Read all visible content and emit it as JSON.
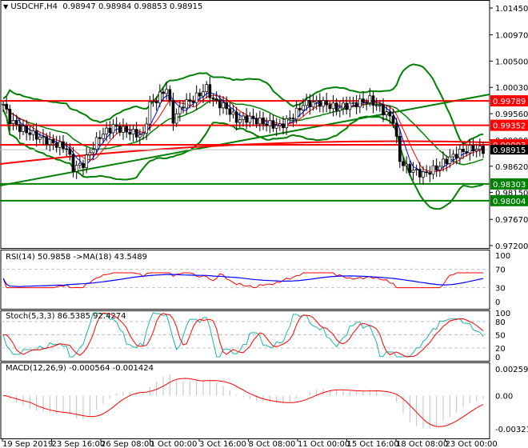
{
  "header": {
    "symbol": "USDCHF,H4",
    "open": "0.98947",
    "high": "0.98984",
    "low": "0.98853",
    "close": "0.98915"
  },
  "price_axis": {
    "ticks": [
      "1.01450",
      "1.00970",
      "1.00500",
      "1.00030",
      "0.99560",
      "0.99090",
      "0.98620",
      "0.98150",
      "0.97670",
      "0.97200"
    ],
    "min": 0.972,
    "max": 1.0145
  },
  "levels": [
    {
      "value": "0.99789",
      "color": "#ff0000"
    },
    {
      "value": "0.99352",
      "color": "#ff0000"
    },
    {
      "value": "0.99003",
      "color": "#ff0000"
    },
    {
      "value": "0.98303",
      "color": "#008000"
    },
    {
      "value": "0.98004",
      "color": "#008000"
    }
  ],
  "current_price": "0.98915",
  "rsi": {
    "label": "RSI(14) 50.9858  ->MA(18) 43.5489",
    "ticks": [
      "100",
      "70",
      "30",
      "0"
    ]
  },
  "stoch": {
    "label": "Stoch(5,3,3) 86.5385 92.4274",
    "ticks": [
      "100",
      "80",
      "50",
      "20",
      "0"
    ]
  },
  "macd": {
    "label": "MACD(12,26,9) -0.000564 -0.001424",
    "ticks": [
      "0.00259",
      "0.00",
      "-0.003217"
    ]
  },
  "time_axis": [
    "19 Sep 2019",
    "23 Sep 16:00",
    "26 Sep 08:00",
    "1 Oct 00:00",
    "3 Oct 16:00",
    "8 Oct 08:00",
    "11 Oct 00:00",
    "15 Oct 16:00",
    "18 Oct 08:00",
    "23 Oct 00:00"
  ],
  "chart_data": {
    "type": "candlestick",
    "candles": 145,
    "close_keyframes": [
      [
        0,
        0.9973
      ],
      [
        2,
        0.9945
      ],
      [
        5,
        0.993
      ],
      [
        10,
        0.9916
      ],
      [
        14,
        0.9905
      ],
      [
        19,
        0.9895
      ],
      [
        21,
        0.9859
      ],
      [
        24,
        0.9866
      ],
      [
        26,
        0.9887
      ],
      [
        29,
        0.9916
      ],
      [
        33,
        0.9933
      ],
      [
        38,
        0.9923
      ],
      [
        42,
        0.9916
      ],
      [
        44,
        0.9973
      ],
      [
        46,
        0.9981
      ],
      [
        49,
        1.0002
      ],
      [
        51,
        0.9945
      ],
      [
        54,
        0.9973
      ],
      [
        57,
        0.9981
      ],
      [
        61,
        1.0002
      ],
      [
        63,
        0.998
      ],
      [
        67,
        0.9966
      ],
      [
        70,
        0.9945
      ],
      [
        74,
        0.9948
      ],
      [
        79,
        0.9938
      ],
      [
        83,
        0.9933
      ],
      [
        87,
        0.9952
      ],
      [
        90,
        0.9973
      ],
      [
        95,
        0.9976
      ],
      [
        100,
        0.9966
      ],
      [
        105,
        0.9973
      ],
      [
        110,
        0.9981
      ],
      [
        113,
        0.9966
      ],
      [
        117,
        0.9945
      ],
      [
        119,
        0.9873
      ],
      [
        121,
        0.9859
      ],
      [
        124,
        0.9852
      ],
      [
        126,
        0.9847
      ],
      [
        130,
        0.9859
      ],
      [
        133,
        0.9873
      ],
      [
        137,
        0.9887
      ],
      [
        141,
        0.9894
      ],
      [
        144,
        0.98915
      ]
    ]
  }
}
